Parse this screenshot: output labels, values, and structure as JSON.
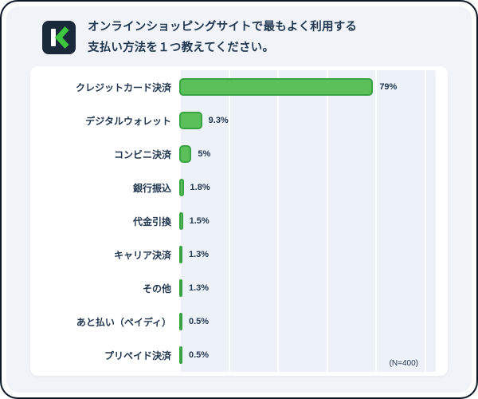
{
  "header": {
    "logo_text": "K",
    "question_line1": "オンラインショッピングサイトで最もよく利用する",
    "question_line2": "支払い方法を１つ教えてください。"
  },
  "chart_data": {
    "type": "bar",
    "orientation": "horizontal",
    "title": "オンラインショッピングサイトで最もよく利用する支払い方法を１つ教えてください。",
    "categories": [
      "クレジットカード決済",
      "デジタルウォレット",
      "コンビニ決済",
      "銀行振込",
      "代金引換",
      "キャリア決済",
      "その他",
      "あと払い（ペイディ）",
      "プリペイド決済"
    ],
    "values": [
      79,
      9.3,
      5,
      1.8,
      1.5,
      1.3,
      1.3,
      0.5,
      0.5
    ],
    "value_labels": [
      "79%",
      "9.3%",
      "5%",
      "1.8%",
      "1.5%",
      "1.3%",
      "1.3%",
      "0.5%",
      "0.5%"
    ],
    "xlim": [
      0,
      100
    ],
    "x_ticks": [
      0,
      20,
      40,
      60,
      80,
      100
    ],
    "tick_labels_visible": false,
    "grid": "vertical",
    "legend": "none",
    "sample_label": "(N=400)",
    "bar_color": "#5bc05a",
    "bar_border_color": "#37a342"
  },
  "colors": {
    "page_bg": "#f0f4f9",
    "card_bg": "#ffffff",
    "plot_bg": "#edf1f8",
    "gridline": "#fcfdfe",
    "text_dark": "#223750",
    "logo_bg": "#1b2a3b",
    "logo_green": "#3ec53e",
    "frame_edge": "#0c1825"
  }
}
